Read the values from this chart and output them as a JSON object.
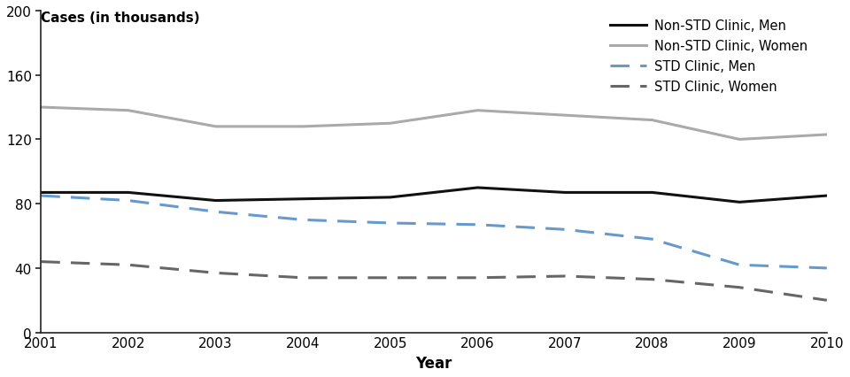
{
  "years": [
    2001,
    2002,
    2003,
    2004,
    2005,
    2006,
    2007,
    2008,
    2009,
    2010
  ],
  "non_std_men": [
    87,
    87,
    82,
    83,
    84,
    90,
    87,
    87,
    81,
    85
  ],
  "non_std_women": [
    140,
    138,
    128,
    128,
    130,
    138,
    135,
    132,
    120,
    123
  ],
  "std_men": [
    85,
    82,
    75,
    70,
    68,
    67,
    64,
    58,
    42,
    40
  ],
  "std_women": [
    44,
    42,
    37,
    34,
    34,
    34,
    35,
    33,
    28,
    20
  ],
  "ylim": [
    0,
    200
  ],
  "yticks": [
    0,
    40,
    80,
    120,
    160,
    200
  ],
  "top_label": "Cases (in thousands)",
  "xlabel": "Year",
  "legend_labels": [
    "Non-STD Clinic, Men",
    "Non-STD Clinic, Women",
    "STD Clinic, Men",
    "STD Clinic, Women"
  ],
  "color_non_std_men": "#111111",
  "color_non_std_women": "#aaaaaa",
  "color_std_men": "#6699cc",
  "color_std_women": "#666666",
  "background_color": "#ffffff",
  "linewidth": 2.2,
  "dash_pattern": [
    7,
    4
  ]
}
